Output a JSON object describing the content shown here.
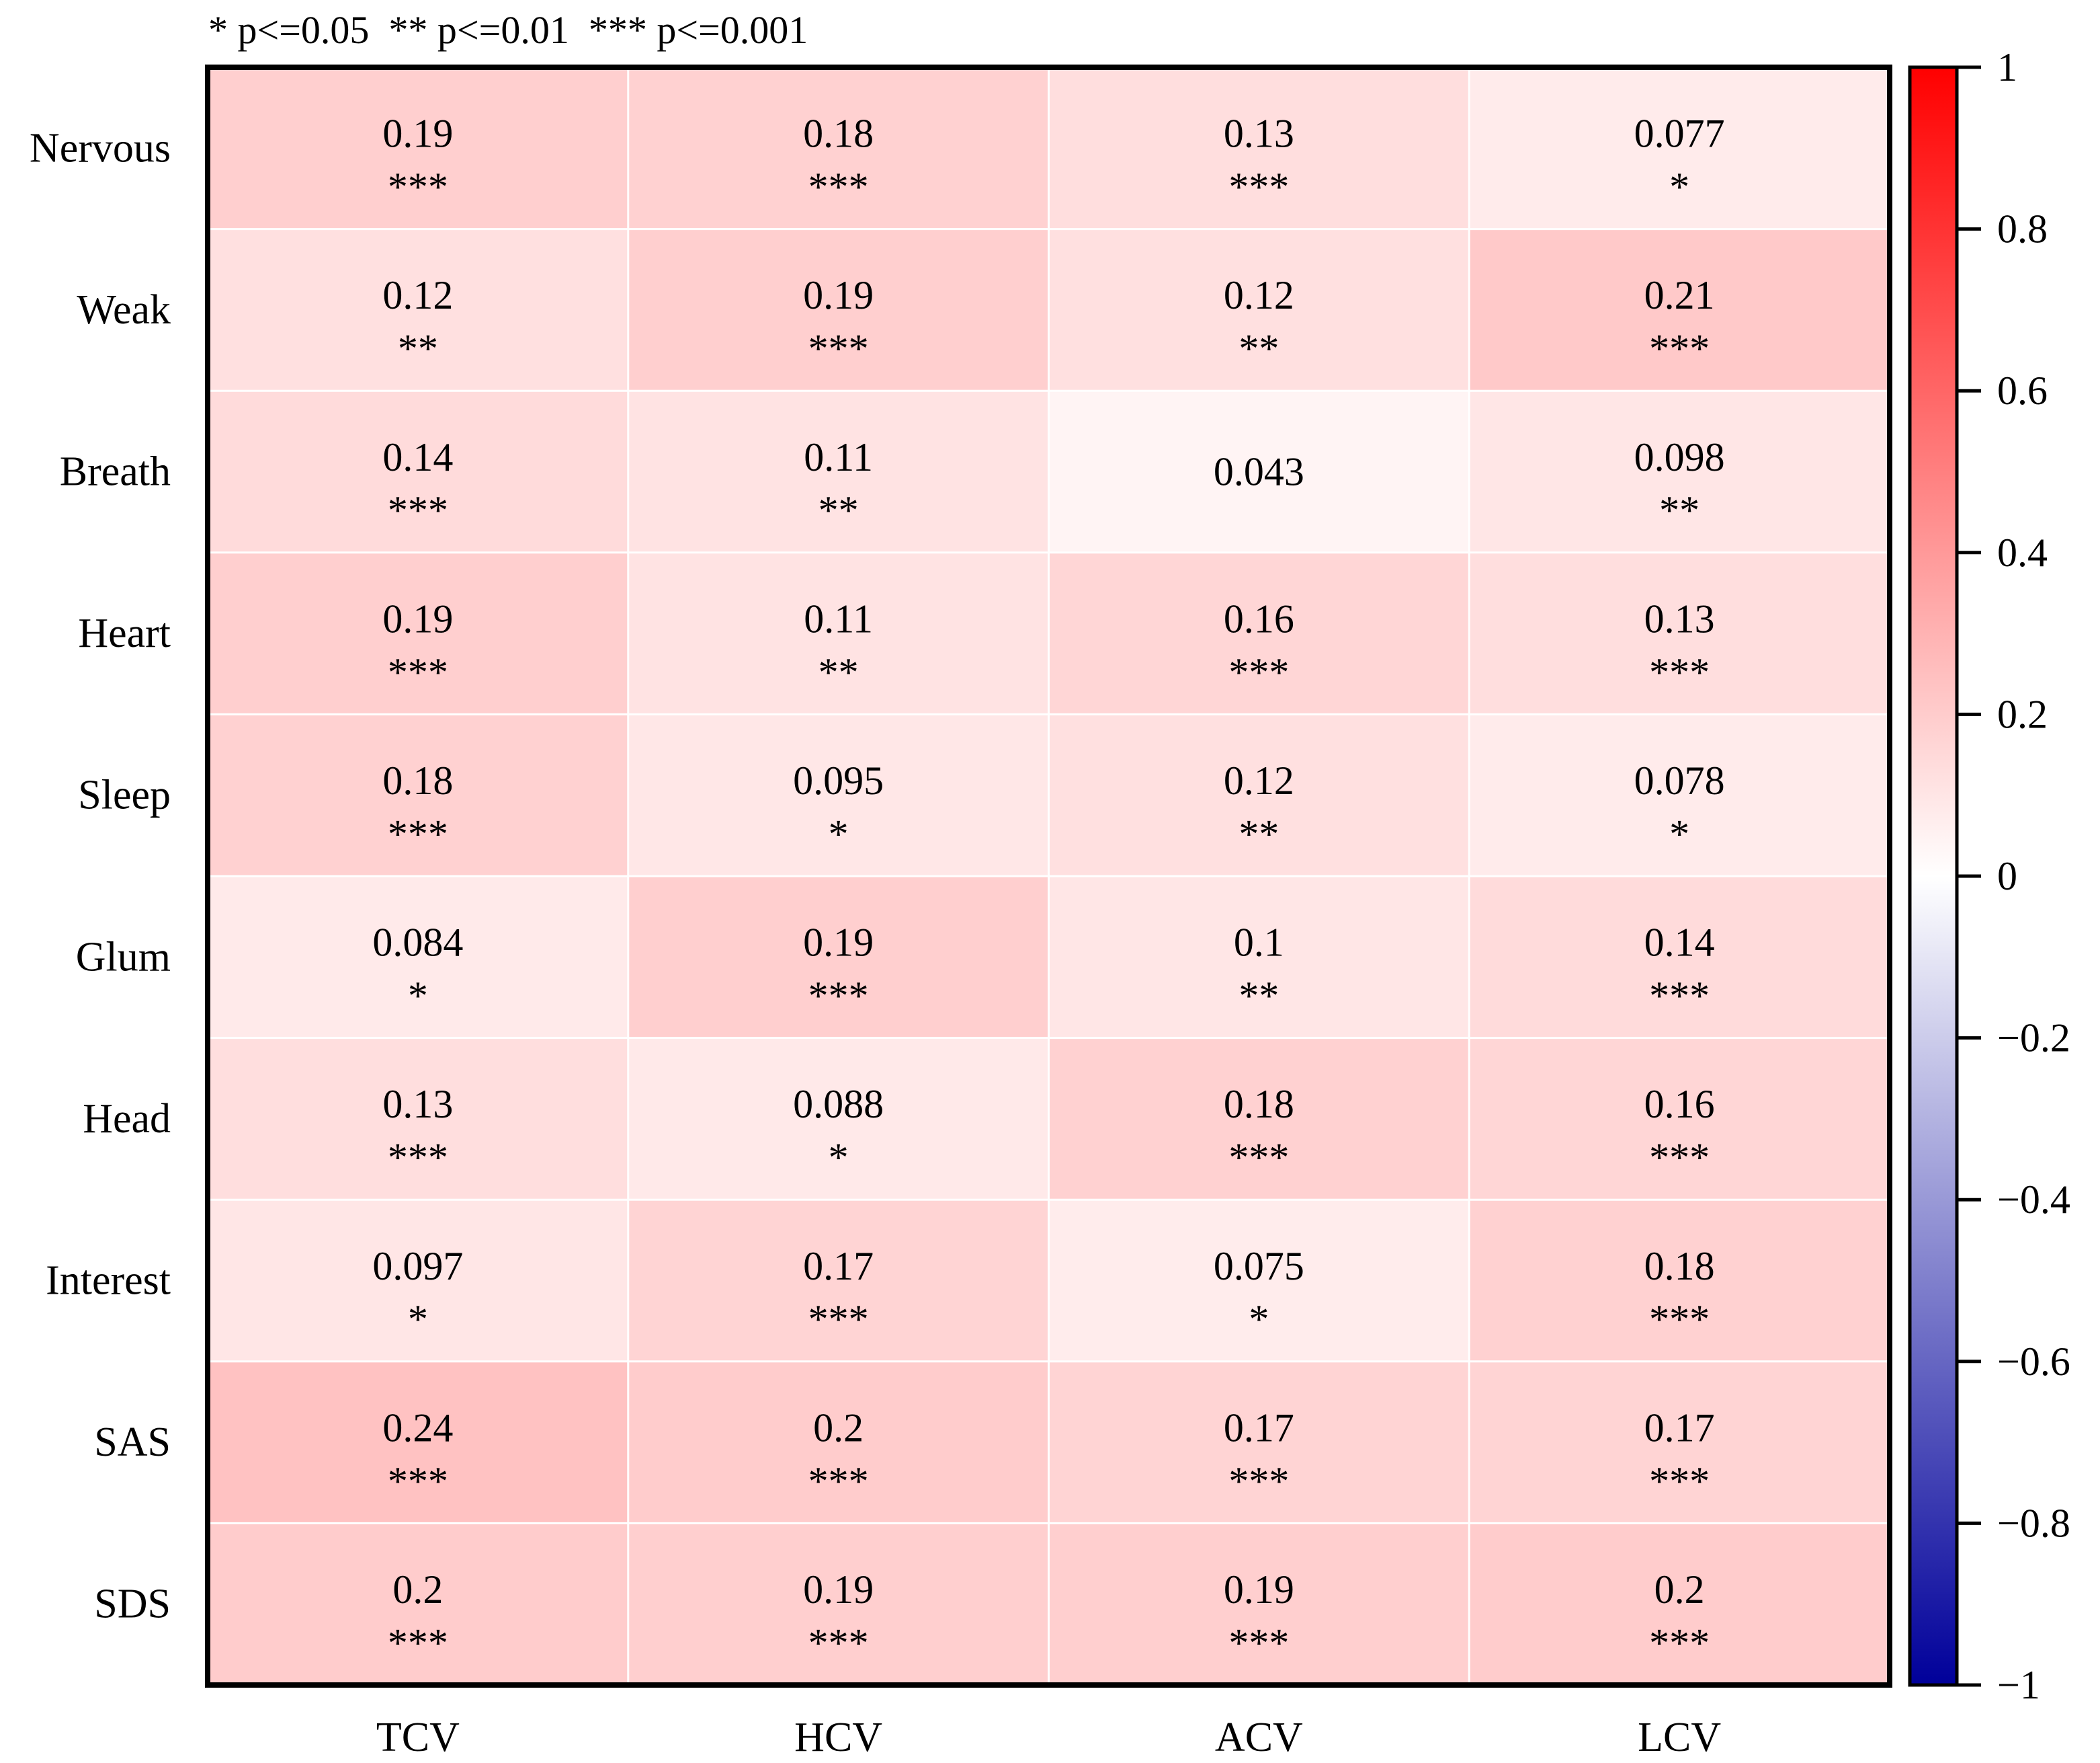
{
  "significance_note": "* p<=0.05  ** p<=0.01  *** p<=0.001",
  "colors": {
    "positive_max": "#ff0000",
    "zero": "#ffffff",
    "negative_max": "#00009a"
  },
  "chart_data": {
    "type": "heatmap",
    "rows": [
      "Nervous",
      "Weak",
      "Breath",
      "Heart",
      "Sleep",
      "Glum",
      "Head",
      "Interest",
      "SAS",
      "SDS"
    ],
    "columns": [
      "TCV",
      "HCV",
      "ACV",
      "LCV"
    ],
    "values": [
      [
        "0.19",
        "0.18",
        "0.13",
        "0.077"
      ],
      [
        "0.12",
        "0.19",
        "0.12",
        "0.21"
      ],
      [
        "0.14",
        "0.11",
        "0.043",
        "0.098"
      ],
      [
        "0.19",
        "0.11",
        "0.16",
        "0.13"
      ],
      [
        "0.18",
        "0.095",
        "0.12",
        "0.078"
      ],
      [
        "0.084",
        "0.19",
        "0.1",
        "0.14"
      ],
      [
        "0.13",
        "0.088",
        "0.18",
        "0.16"
      ],
      [
        "0.097",
        "0.17",
        "0.075",
        "0.18"
      ],
      [
        "0.24",
        "0.2",
        "0.17",
        "0.17"
      ],
      [
        "0.2",
        "0.19",
        "0.19",
        "0.2"
      ]
    ],
    "significance": [
      [
        "***",
        "***",
        "***",
        "*"
      ],
      [
        "**",
        "***",
        "**",
        "***"
      ],
      [
        "***",
        "**",
        "",
        "**"
      ],
      [
        "***",
        "**",
        "***",
        "***"
      ],
      [
        "***",
        "*",
        "**",
        "*"
      ],
      [
        "*",
        "***",
        "**",
        "***"
      ],
      [
        "***",
        "*",
        "***",
        "***"
      ],
      [
        "*",
        "***",
        "*",
        "***"
      ],
      [
        "***",
        "***",
        "***",
        "***"
      ],
      [
        "***",
        "***",
        "***",
        "***"
      ]
    ],
    "colorbar": {
      "range": [
        -1,
        1
      ],
      "ticks": [
        "1",
        "0.8",
        "0.6",
        "0.4",
        "0.2",
        "0",
        "−0.2",
        "−0.4",
        "−0.6",
        "−0.8",
        "−1"
      ]
    }
  }
}
